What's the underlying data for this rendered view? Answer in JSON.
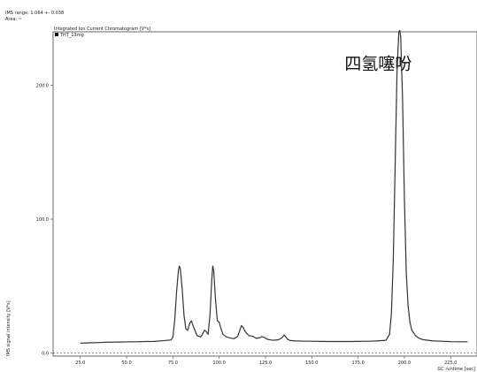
{
  "header": {
    "ims_range": "IMS range: 1.064 +- 0.038",
    "area": "Area: ~"
  },
  "chart_data": {
    "type": "line",
    "title": "Integrated Ion Current Chromatogram [V*s]",
    "xlabel": "GC runtime [sec]",
    "ylabel": "IMS signal intensity [V*s]",
    "xlim": [
      10.3,
      239.2
    ],
    "ylim": [
      -2.3,
      240
    ],
    "x_ticks": [
      "25.0",
      "50.0",
      "75.0",
      "100.0",
      "125.0",
      "150.0",
      "175.0",
      "200.0",
      "225.0"
    ],
    "x_tick_values": [
      25,
      50,
      75,
      100,
      125,
      150,
      175,
      200,
      225
    ],
    "y_ticks": [
      "0.0",
      "100.0",
      "200.0"
    ],
    "y_tick_values": [
      0,
      100,
      200
    ],
    "baseline": 0,
    "legend": {
      "entries": [
        "THT_13mg"
      ],
      "position": "top-left"
    },
    "annotations": [
      {
        "text": "四氢噻吩",
        "x": 204,
        "y": 212
      }
    ],
    "series": [
      {
        "name": "THT_13mg",
        "color": "#333333",
        "x": [
          25,
          30,
          35,
          40,
          45,
          50,
          55,
          60,
          65,
          70,
          74,
          75,
          76,
          77,
          78,
          78.5,
          79,
          80,
          81,
          82,
          83,
          84,
          85,
          86,
          88,
          90,
          91,
          92,
          93,
          94,
          95,
          96,
          96.5,
          97,
          98,
          99,
          100,
          101,
          102,
          104,
          106,
          108,
          110,
          111,
          112,
          113,
          114,
          116,
          118,
          120,
          122,
          123,
          124,
          126,
          128,
          130,
          132,
          134,
          135,
          136,
          137,
          138,
          140,
          145,
          150,
          155,
          160,
          165,
          170,
          175,
          180,
          185,
          190,
          192,
          193,
          194,
          195,
          196,
          197,
          197.5,
          198,
          199,
          200,
          201,
          202,
          203,
          204,
          206,
          208,
          210,
          215,
          220,
          225,
          230,
          234
        ],
        "y": [
          7.4,
          7.6,
          7.8,
          8.1,
          8.2,
          8.3,
          8.4,
          8.6,
          8.7,
          9.2,
          9.8,
          12,
          25,
          46,
          62,
          65,
          63,
          48,
          28,
          18,
          17,
          22,
          24,
          20,
          13,
          12,
          14,
          17,
          16,
          14,
          28,
          55,
          65,
          62,
          40,
          24,
          23,
          18,
          14,
          12,
          11.2,
          10.7,
          12.5,
          16.5,
          20.5,
          19,
          16,
          13,
          12.5,
          11,
          11.5,
          12.3,
          11.8,
          10.3,
          9.7,
          9.6,
          9.9,
          11.5,
          13.5,
          12,
          10.2,
          9.5,
          9.1,
          8.9,
          8.8,
          8.7,
          8.6,
          8.6,
          8.6,
          8.7,
          8.8,
          9.0,
          9.5,
          14,
          30,
          70,
          140,
          210,
          240,
          241,
          236,
          190,
          115,
          60,
          35,
          23,
          17,
          13,
          11,
          10,
          9.1,
          8.8,
          8.5,
          8.4,
          8.4
        ]
      }
    ]
  }
}
